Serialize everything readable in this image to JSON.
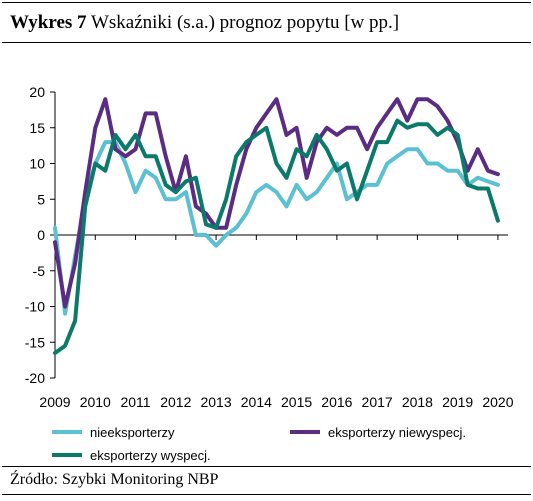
{
  "header": {
    "title_bold": "Wykres 7",
    "title_rest": "Wskaźniki (s.a.) prognoz popytu [w pp.]"
  },
  "footer": {
    "source": "Źródło: Szybki Monitoring NBP"
  },
  "chart_data": {
    "type": "line",
    "title": "Wykres 7 Wskaźniki (s.a.) prognoz popytu [w pp.]",
    "xlabel": "",
    "ylabel": "",
    "ylim": [
      -20,
      20
    ],
    "yticks": [
      -20,
      -15,
      -10,
      -5,
      0,
      5,
      10,
      15,
      20
    ],
    "xlim": [
      2009.0,
      2020.25
    ],
    "xticks": [
      "2009",
      "2010",
      "2011",
      "2012",
      "2013",
      "2014",
      "2015",
      "2016",
      "2017",
      "2018",
      "2019",
      "2020"
    ],
    "x": [
      2009.0,
      2009.25,
      2009.5,
      2009.75,
      2010.0,
      2010.25,
      2010.5,
      2010.75,
      2011.0,
      2011.25,
      2011.5,
      2011.75,
      2012.0,
      2012.25,
      2012.5,
      2012.75,
      2013.0,
      2013.25,
      2013.5,
      2013.75,
      2014.0,
      2014.25,
      2014.5,
      2014.75,
      2015.0,
      2015.25,
      2015.5,
      2015.75,
      2016.0,
      2016.25,
      2016.5,
      2016.75,
      2017.0,
      2017.25,
      2017.5,
      2017.75,
      2018.0,
      2018.25,
      2018.5,
      2018.75,
      2019.0,
      2019.25,
      2019.5,
      2019.75,
      2020.0
    ],
    "grid": false,
    "legend": "bottom",
    "series": [
      {
        "name": "nieeksporterzy",
        "color": "#5bc0d2",
        "values": [
          1,
          -11,
          -3,
          5,
          10,
          13,
          13,
          10,
          6,
          9,
          8,
          5,
          5,
          6,
          0,
          0,
          -1.5,
          0,
          1,
          3,
          6,
          7,
          6,
          4,
          7,
          5,
          6,
          8,
          10,
          5,
          6,
          7,
          7,
          10,
          11,
          12,
          12,
          10,
          10,
          9,
          9,
          7,
          8,
          7.5,
          7
        ]
      },
      {
        "name": "eksporterzy niewyspecj.",
        "color": "#5b2d82",
        "values": [
          -1,
          -10,
          -4,
          6,
          15,
          19,
          12,
          11,
          12,
          17,
          17,
          11,
          6,
          11,
          4,
          3,
          1,
          1,
          7,
          12,
          15,
          17,
          19,
          14,
          15,
          8,
          13,
          15,
          14,
          15,
          15,
          12,
          15,
          17,
          19,
          16,
          19,
          19,
          18,
          16,
          13,
          9,
          12,
          9,
          8.5
        ]
      },
      {
        "name": "eksporterzy wyspecj.",
        "color": "#0b7a6a",
        "values": [
          -16.5,
          -15.5,
          -12,
          4,
          10,
          9,
          14,
          12,
          14,
          11,
          11,
          7,
          6,
          7.5,
          8,
          1.5,
          1,
          5,
          11,
          13,
          14,
          15,
          10,
          8,
          12,
          11,
          14,
          12,
          9,
          10,
          5,
          9,
          13,
          13,
          16,
          15,
          15.5,
          15.5,
          14,
          15,
          14,
          7,
          6.5,
          6.5,
          2
        ]
      }
    ]
  }
}
